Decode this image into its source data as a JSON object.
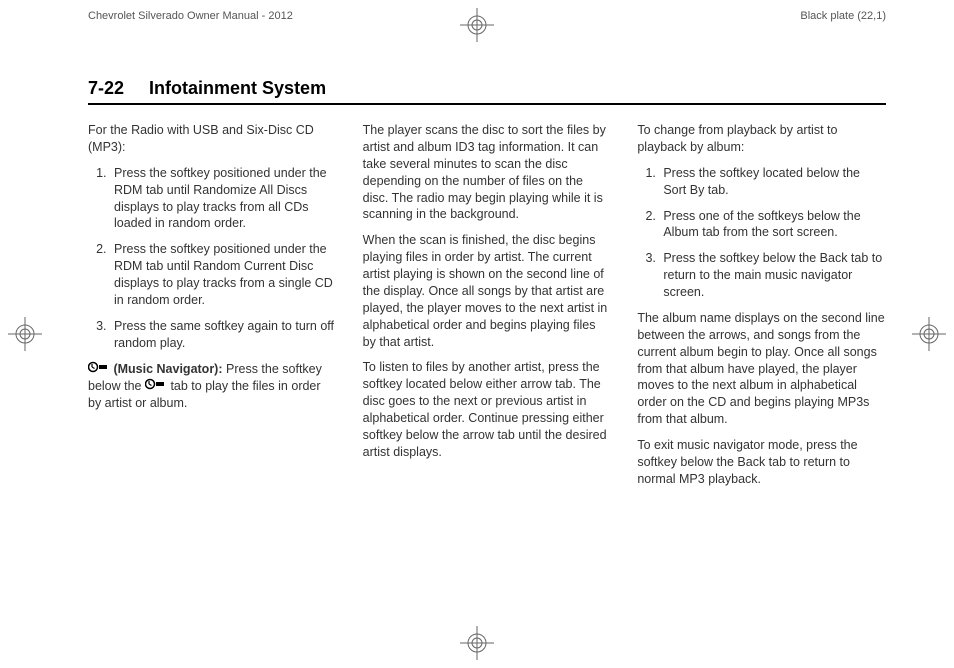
{
  "header": {
    "left": "Chevrolet Silverado Owner Manual - 2012",
    "right": "Black plate (22,1)"
  },
  "page_header": {
    "number": "7-22",
    "title": "Infotainment System"
  },
  "col1": {
    "intro": "For the Radio with USB and Six-Disc CD (MP3):",
    "list": [
      "Press the softkey positioned under the RDM tab until Randomize All Discs displays to play tracks from all CDs loaded in random order.",
      "Press the softkey positioned under the RDM tab until Random Current Disc displays to play tracks from a single CD in random order.",
      "Press the same softkey again to turn off random play."
    ],
    "nav_label": " (Music Navigator):",
    "nav_text_1": "  Press the softkey below the ",
    "nav_text_2": " tab to play the files in order by artist or album."
  },
  "col2": {
    "p1": "The player scans the disc to sort the files by artist and album ID3 tag information. It can take several minutes to scan the disc depending on the number of files on the disc. The radio may begin playing while it is scanning in the background.",
    "p2": "When the scan is finished, the disc begins playing files in order by artist. The current artist playing is shown on the second line of the display. Once all songs by that artist are played, the player moves to the next artist in alphabetical order and begins playing files by that artist.",
    "p3": "To listen to files by another artist, press the softkey located below either arrow tab. The disc goes to the next or previous artist in alphabetical order. Continue pressing either softkey below the arrow tab until the desired artist displays."
  },
  "col3": {
    "intro": "To change from playback by artist to playback by album:",
    "list": [
      "Press the softkey located below the Sort By tab.",
      "Press one of the softkeys below the Album tab from the sort screen.",
      "Press the softkey below the Back tab to return to the main music navigator screen."
    ],
    "p1": "The album name displays on the second line between the arrows, and songs from the current album begin to play. Once all songs from that album have played, the player moves to the next album in alphabetical order on the CD and begins playing MP3s from that album.",
    "p2": "To exit music navigator mode, press the softkey below the Back tab to return to normal MP3 playback."
  },
  "reg_mark": {
    "stroke": "#666",
    "size": 34
  }
}
